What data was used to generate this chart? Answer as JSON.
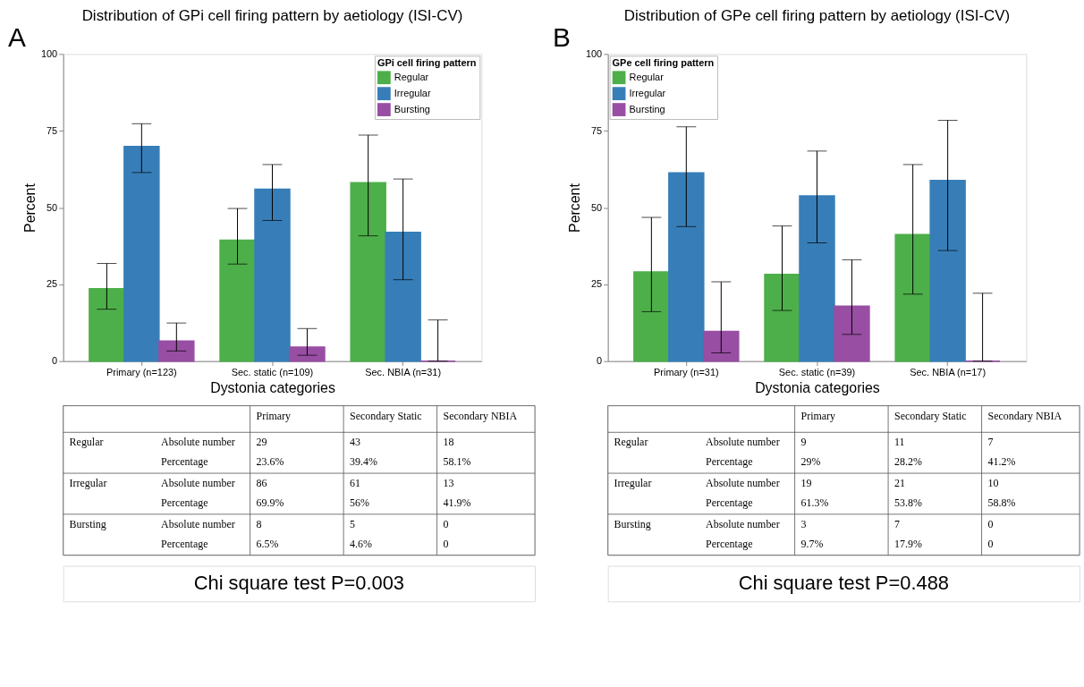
{
  "chart_data": [
    {
      "type": "bar",
      "title": "Distribution of GPi cell firing pattern by aetiology (ISI-CV)",
      "xlabel": "Dystonia categories",
      "ylabel": "Percent",
      "legend_title": "GPi cell firing pattern",
      "legend": "top right",
      "grid": false,
      "ylim": [
        0,
        100
      ],
      "yticks": [
        0,
        25,
        50,
        75,
        100
      ],
      "categories": [
        "Primary (n=123)",
        "Sec. static (n=109)",
        "Sec. NBIA (n=31)"
      ],
      "series": [
        {
          "name": "Regular",
          "color": "#4daf4a",
          "values": [
            23.6,
            39.4,
            58.1
          ],
          "errors": [
            [
              16.9,
              31.8
            ],
            [
              31.6,
              49.7
            ],
            [
              40.8,
              73.6
            ]
          ]
        },
        {
          "name": "Irregular",
          "color": "#377eb8",
          "values": [
            69.9,
            56,
            41.9
          ],
          "errors": [
            [
              61.4,
              77.3
            ],
            [
              45.8,
              64.0
            ],
            [
              26.5,
              59.3
            ]
          ]
        },
        {
          "name": "Bursting",
          "color": "#984ea3",
          "values": [
            6.5,
            4.6,
            0
          ],
          "errors": [
            [
              3.3,
              12.4
            ],
            [
              1.9,
              10.6
            ],
            [
              0,
              13.4
            ]
          ]
        }
      ],
      "annotations": [
        "A",
        "Primary",
        "Secondary Static",
        "Secondary NBIA",
        "Absolute number",
        "Percentage",
        "29",
        "43",
        "18",
        "86",
        "61",
        "13",
        "8",
        "5",
        "0",
        "23.6%",
        "39.4%",
        "58.1%",
        "69.9%",
        "56%",
        "41.9%",
        "6.5%",
        "4.6%",
        "0",
        "Chi square test P=0.003"
      ]
    },
    {
      "type": "bar",
      "title": "Distribution of GPe cell firing pattern by aetiology (ISI-CV)",
      "xlabel": "Dystonia categories",
      "ylabel": "Percent",
      "legend_title": "GPe cell firing pattern",
      "legend": "top left",
      "grid": false,
      "ylim": [
        0,
        100
      ],
      "yticks": [
        0,
        25,
        50,
        75,
        100
      ],
      "categories": [
        "Primary (n=31)",
        "Sec. static (n=39)",
        "Sec. NBIA (n=17)"
      ],
      "series": [
        {
          "name": "Regular",
          "color": "#4daf4a",
          "values": [
            29,
            28.2,
            41.2
          ],
          "errors": [
            [
              16.1,
              46.8
            ],
            [
              16.5,
              44.0
            ],
            [
              21.8,
              64.0
            ]
          ]
        },
        {
          "name": "Irregular",
          "color": "#377eb8",
          "values": [
            61.3,
            53.8,
            58.8
          ],
          "errors": [
            [
              43.8,
              76.3
            ],
            [
              38.5,
              68.4
            ],
            [
              36.0,
              78.4
            ]
          ]
        },
        {
          "name": "Bursting",
          "color": "#984ea3",
          "values": [
            9.7,
            17.9,
            0
          ],
          "errors": [
            [
              2.7,
              25.8
            ],
            [
              8.7,
              33.0
            ],
            [
              0,
              22.1
            ]
          ]
        }
      ],
      "annotations": [
        "B",
        "Primary",
        "Secondary Static",
        "Secondary NBIA",
        "Absolute number",
        "Percentage",
        "9",
        "11",
        "7",
        "19",
        "21",
        "10",
        "3",
        "7",
        "0",
        "29%",
        "28.2%",
        "41.2%",
        "61.3%",
        "53.8%",
        "58.8%",
        "9.7%",
        "17.9%",
        "0",
        "Chi square test P=0.488"
      ]
    }
  ]
}
